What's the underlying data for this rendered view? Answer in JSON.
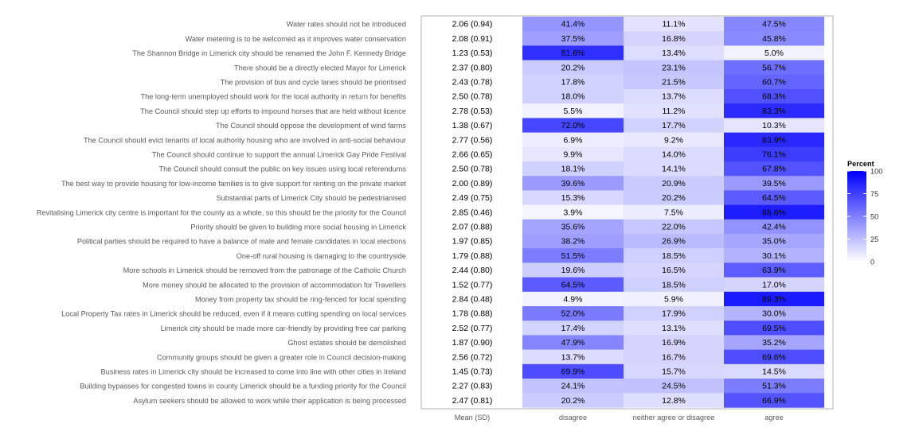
{
  "chart_data": {
    "type": "heatmap",
    "columns": [
      "Mean (SD)",
      "disagree",
      "neither agree or disagree",
      "agree"
    ],
    "rows": [
      {
        "statement": "Water rates should not be introduced",
        "mean_sd": "2.06 (0.94)",
        "disagree": 41.4,
        "neither": 11.1,
        "agree": 47.5
      },
      {
        "statement": "Water metering is to be welcomed as it improves water conservation",
        "mean_sd": "2.08 (0.91)",
        "disagree": 37.5,
        "neither": 16.8,
        "agree": 45.8
      },
      {
        "statement": "The Shannon Bridge in Limerick city should be renamed the John F. Kennedy Bridge",
        "mean_sd": "1.23 (0.53)",
        "disagree": 81.6,
        "neither": 13.4,
        "agree": 5.0
      },
      {
        "statement": "There should be a directly elected Mayor for Limerick",
        "mean_sd": "2.37 (0.80)",
        "disagree": 20.2,
        "neither": 23.1,
        "agree": 56.7
      },
      {
        "statement": "The provision of bus and cycle lanes should be prioritised",
        "mean_sd": "2.43 (0.78)",
        "disagree": 17.8,
        "neither": 21.5,
        "agree": 60.7
      },
      {
        "statement": "The long-term unemployed should work for the local authority in return for benefits",
        "mean_sd": "2.50 (0.78)",
        "disagree": 18.0,
        "neither": 13.7,
        "agree": 68.3
      },
      {
        "statement": "The Council should step up efforts to impound horses that are held without licence",
        "mean_sd": "2.78 (0.53)",
        "disagree": 5.5,
        "neither": 11.2,
        "agree": 83.3
      },
      {
        "statement": "The Council should oppose the development of wind farms",
        "mean_sd": "1.38 (0.67)",
        "disagree": 72.0,
        "neither": 17.7,
        "agree": 10.3
      },
      {
        "statement": "The Council should evict tenants of local authority housing who are involved in anti-social behaviour",
        "mean_sd": "2.77 (0.56)",
        "disagree": 6.9,
        "neither": 9.2,
        "agree": 83.9
      },
      {
        "statement": "The Council should continue to support the annual Limerick Gay Pride Festival",
        "mean_sd": "2.66 (0.65)",
        "disagree": 9.9,
        "neither": 14.0,
        "agree": 76.1
      },
      {
        "statement": "The Council should consult the public on key issues using local referendums",
        "mean_sd": "2.50 (0.78)",
        "disagree": 18.1,
        "neither": 14.1,
        "agree": 67.8
      },
      {
        "statement": "The best way to provide housing for low-income families is to give support for renting on the private market",
        "mean_sd": "2.00 (0.89)",
        "disagree": 39.6,
        "neither": 20.9,
        "agree": 39.5
      },
      {
        "statement": "Substantial parts of Limerick City should be pedestrianised",
        "mean_sd": "2.49 (0.75)",
        "disagree": 15.3,
        "neither": 20.2,
        "agree": 64.5
      },
      {
        "statement": "Revitalising Limerick city centre is important for the county as a whole, so this should be the priority for the Council",
        "mean_sd": "2.85 (0.46)",
        "disagree": 3.9,
        "neither": 7.5,
        "agree": 88.6
      },
      {
        "statement": "Priority should be given to building more social housing in Limerick",
        "mean_sd": "2.07 (0.88)",
        "disagree": 35.6,
        "neither": 22.0,
        "agree": 42.4
      },
      {
        "statement": "Political parties should be required to have a balance of male and female candidates in local elections",
        "mean_sd": "1.97 (0.85)",
        "disagree": 38.2,
        "neither": 26.9,
        "agree": 35.0
      },
      {
        "statement": "One-off rural housing is damaging to the countryside",
        "mean_sd": "1.79 (0.88)",
        "disagree": 51.5,
        "neither": 18.5,
        "agree": 30.1
      },
      {
        "statement": "More schools in Limerick should be removed from the patronage of the Catholic Church",
        "mean_sd": "2.44 (0.80)",
        "disagree": 19.6,
        "neither": 16.5,
        "agree": 63.9
      },
      {
        "statement": "More money should be allocated to the provision of accommodation for Travellers",
        "mean_sd": "1.52 (0.77)",
        "disagree": 64.5,
        "neither": 18.5,
        "agree": 17.0
      },
      {
        "statement": "Money from property tax should be ring-fenced for local spending",
        "mean_sd": "2.84 (0.48)",
        "disagree": 4.9,
        "neither": 5.9,
        "agree": 89.3
      },
      {
        "statement": "Local Property Tax rates in Limerick should be reduced, even if it means cutting spending on local services",
        "mean_sd": "1.78 (0.88)",
        "disagree": 52.0,
        "neither": 17.9,
        "agree": 30.0
      },
      {
        "statement": "Limerick city should be made more car-friendly by providing free car parking",
        "mean_sd": "2.52 (0.77)",
        "disagree": 17.4,
        "neither": 13.1,
        "agree": 69.5
      },
      {
        "statement": "Ghost estates should be demolished",
        "mean_sd": "1.87 (0.90)",
        "disagree": 47.9,
        "neither": 16.9,
        "agree": 35.2
      },
      {
        "statement": "Community groups should be given a greater role in Council decision-making",
        "mean_sd": "2.56 (0.72)",
        "disagree": 13.7,
        "neither": 16.7,
        "agree": 69.6
      },
      {
        "statement": "Business rates in Limerick city should be increased to come into line with other cities in Ireland",
        "mean_sd": "1.45 (0.73)",
        "disagree": 69.9,
        "neither": 15.7,
        "agree": 14.5
      },
      {
        "statement": "Building bypasses for congested towns in county Limerick should be a funding priority for the Council",
        "mean_sd": "2.27 (0.83)",
        "disagree": 24.1,
        "neither": 24.5,
        "agree": 51.3
      },
      {
        "statement": "Asylum seekers should be allowed to work while their application is being processed",
        "mean_sd": "2.47 (0.81)",
        "disagree": 20.2,
        "neither": 12.8,
        "agree": 66.9
      }
    ],
    "legend": {
      "title": "Percent",
      "ticks": [
        0,
        25,
        50,
        75,
        100
      ],
      "low_color": "#ffffff",
      "high_color": "#0000ff",
      "placement": "right"
    },
    "value_format": "percent_one_decimal"
  }
}
